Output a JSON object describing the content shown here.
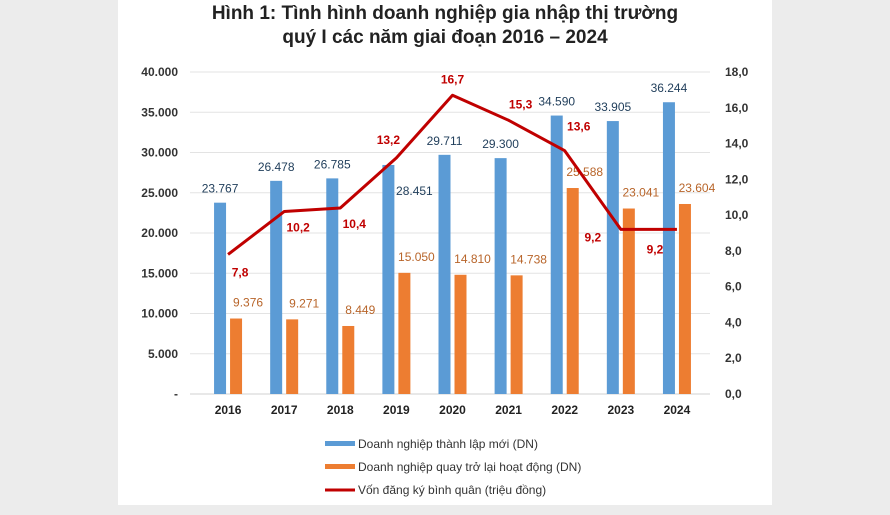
{
  "chart_data": {
    "type": "bar+line",
    "title_lines": [
      "Hình 1: Tình hình doanh nghiệp gia nhập thị trường",
      "quý I các năm giai đoạn 2016 – 2024"
    ],
    "categories": [
      "2016",
      "2017",
      "2018",
      "2019",
      "2020",
      "2021",
      "2022",
      "2023",
      "2024"
    ],
    "series": [
      {
        "name": "Doanh nghiệp thành lập mới (DN)",
        "type": "bar",
        "axis": "left",
        "color": "#5b9bd5",
        "values": [
          23767,
          26478,
          26785,
          28451,
          29711,
          29300,
          34590,
          33905,
          36244
        ],
        "labels": [
          "23.767",
          "26.478",
          "26.785",
          "28.451",
          "29.711",
          "29.300",
          "34.590",
          "33.905",
          "36.244"
        ]
      },
      {
        "name": "Doanh nghiệp quay trở lại hoạt động (DN)",
        "type": "bar",
        "axis": "right-of-pair",
        "color": "#ed7d31",
        "values": [
          9376,
          9271,
          8449,
          15050,
          14810,
          14738,
          25588,
          23041,
          23604
        ],
        "labels": [
          "9.376",
          "9.271",
          "8.449",
          "15.050",
          "14.810",
          "14.738",
          "25.588",
          "23.041",
          "23.604"
        ]
      },
      {
        "name": "Vốn đăng ký bình quân (triệu đồng)",
        "type": "line",
        "axis": "right",
        "color": "#c00000",
        "values": [
          7.8,
          10.2,
          10.4,
          13.2,
          16.7,
          15.3,
          13.6,
          9.2,
          9.2
        ],
        "labels": [
          "7,8",
          "10,2",
          "10,4",
          "13,2",
          "16,7",
          "15,3",
          "13,6",
          "9,2",
          "9,2"
        ]
      }
    ],
    "left_axis": {
      "range": [
        0,
        40000
      ],
      "ticks": [
        "-",
        "5.000",
        "10.000",
        "15.000",
        "20.000",
        "25.000",
        "30.000",
        "35.000",
        "40.000"
      ]
    },
    "right_axis": {
      "range": [
        0,
        18
      ],
      "ticks": [
        "0,0",
        "2,0",
        "4,0",
        "6,0",
        "8,0",
        "10,0",
        "12,0",
        "14,0",
        "16,0",
        "18,0"
      ]
    },
    "grid": true,
    "legend_position": "bottom"
  }
}
